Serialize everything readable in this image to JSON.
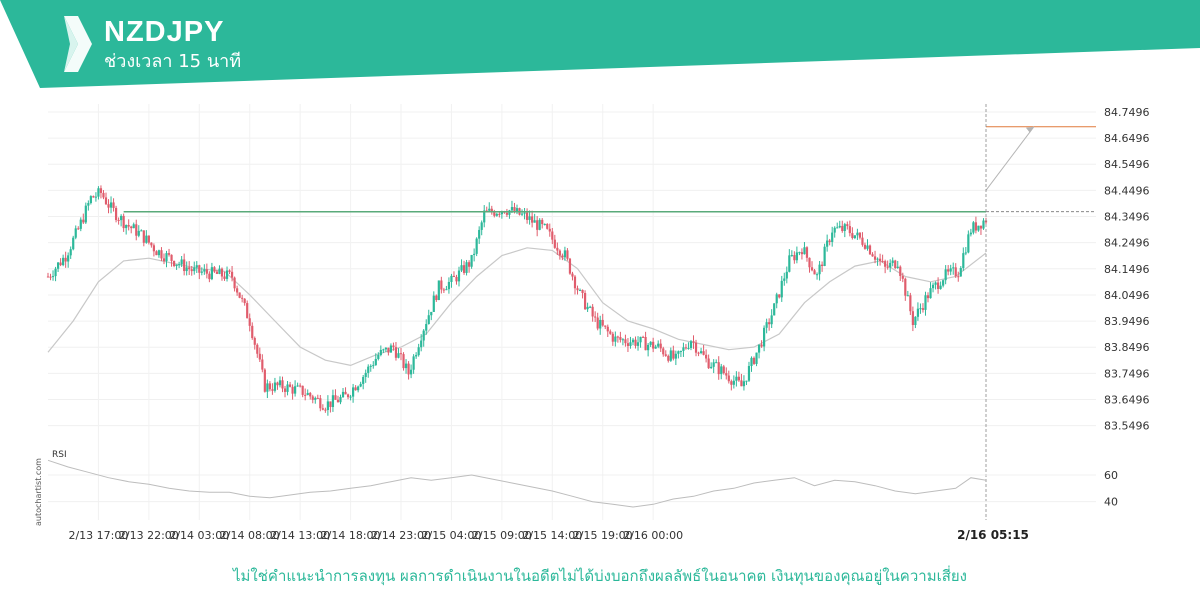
{
  "header": {
    "symbol": "NZDJPY",
    "timeframe": "ช่วงเวลา 15 นาที",
    "brand_color": "#2cb89a"
  },
  "watermark": "autochartist.com",
  "disclaimer": "ไม่ใช่คำแนะนำการลงทุน ผลการดำเนินงานในอดีตไม่ได้บ่งบอกถึงผลลัพธ์ในอนาคต เงินทุนของคุณอยู่ในความเสี่ยง",
  "chart_data": {
    "type": "candlestick",
    "price_axis": {
      "ticks": [
        "84.7496",
        "84.6496",
        "84.5496",
        "84.4496",
        "84.3496",
        "84.2496",
        "84.1496",
        "84.0496",
        "83.9496",
        "83.8496",
        "83.7496",
        "83.6496",
        "83.5496"
      ],
      "range": [
        83.51,
        84.78
      ]
    },
    "time_axis": {
      "ticks": [
        "2/13 17:00",
        "2/13 22:00",
        "2/14 03:00",
        "2/14 08:00",
        "2/14 13:00",
        "2/14 18:00",
        "2/14 23:00",
        "2/15 04:00",
        "2/15 09:00",
        "2/15 14:00",
        "2/15 19:00",
        "2/16 00:00"
      ],
      "current_time_label": "2/16 05:15"
    },
    "key_levels": {
      "breakout_level": 84.368,
      "target_level": 84.693
    },
    "indicator": {
      "name": "RSI",
      "ticks": [
        "60",
        "40"
      ],
      "range": [
        30,
        75
      ]
    },
    "price_path": [
      [
        0,
        84.12
      ],
      [
        7,
        84.2
      ],
      [
        12,
        84.3
      ],
      [
        17,
        84.42
      ],
      [
        21,
        84.44
      ],
      [
        25,
        84.38
      ],
      [
        31,
        84.32
      ],
      [
        37,
        84.28
      ],
      [
        43,
        84.22
      ],
      [
        52,
        84.17
      ],
      [
        58,
        84.14
      ],
      [
        66,
        84.13
      ],
      [
        73,
        84.12
      ],
      [
        80,
        83.95
      ],
      [
        86,
        83.7
      ],
      [
        93,
        83.7
      ],
      [
        101,
        83.68
      ],
      [
        110,
        83.63
      ],
      [
        118,
        83.66
      ],
      [
        125,
        83.74
      ],
      [
        131,
        83.82
      ],
      [
        137,
        83.85
      ],
      [
        143,
        83.75
      ],
      [
        148,
        83.9
      ],
      [
        155,
        84.08
      ],
      [
        160,
        84.1
      ],
      [
        168,
        84.18
      ],
      [
        173,
        84.36
      ],
      [
        181,
        84.38
      ],
      [
        189,
        84.35
      ],
      [
        197,
        84.3
      ],
      [
        205,
        84.2
      ],
      [
        211,
        84.05
      ],
      [
        217,
        83.95
      ],
      [
        225,
        83.88
      ],
      [
        234,
        83.87
      ],
      [
        242,
        83.85
      ],
      [
        249,
        83.8
      ],
      [
        255,
        83.88
      ],
      [
        261,
        83.8
      ],
      [
        267,
        83.76
      ],
      [
        275,
        83.7
      ],
      [
        282,
        83.85
      ],
      [
        288,
        84.0
      ],
      [
        294,
        84.18
      ],
      [
        299,
        84.23
      ],
      [
        305,
        84.12
      ],
      [
        311,
        84.3
      ],
      [
        317,
        84.3
      ],
      [
        324,
        84.25
      ],
      [
        332,
        84.15
      ],
      [
        337,
        84.18
      ],
      [
        343,
        83.95
      ],
      [
        349,
        84.05
      ],
      [
        355,
        84.12
      ],
      [
        361,
        84.14
      ],
      [
        366,
        84.3
      ],
      [
        372,
        84.34
      ]
    ],
    "ma_path": [
      [
        0,
        83.83
      ],
      [
        10,
        83.95
      ],
      [
        20,
        84.1
      ],
      [
        30,
        84.18
      ],
      [
        40,
        84.19
      ],
      [
        50,
        84.17
      ],
      [
        60,
        84.15
      ],
      [
        70,
        84.14
      ],
      [
        80,
        84.05
      ],
      [
        90,
        83.95
      ],
      [
        100,
        83.85
      ],
      [
        110,
        83.8
      ],
      [
        120,
        83.78
      ],
      [
        130,
        83.82
      ],
      [
        140,
        83.85
      ],
      [
        150,
        83.9
      ],
      [
        160,
        84.02
      ],
      [
        170,
        84.12
      ],
      [
        180,
        84.2
      ],
      [
        190,
        84.23
      ],
      [
        200,
        84.22
      ],
      [
        210,
        84.15
      ],
      [
        220,
        84.02
      ],
      [
        230,
        83.95
      ],
      [
        240,
        83.92
      ],
      [
        250,
        83.88
      ],
      [
        260,
        83.86
      ],
      [
        270,
        83.84
      ],
      [
        280,
        83.85
      ],
      [
        290,
        83.9
      ],
      [
        300,
        84.02
      ],
      [
        310,
        84.1
      ],
      [
        320,
        84.16
      ],
      [
        330,
        84.18
      ],
      [
        340,
        84.12
      ],
      [
        350,
        84.1
      ],
      [
        360,
        84.12
      ],
      [
        372,
        84.21
      ]
    ],
    "rsi_path": [
      [
        0,
        71
      ],
      [
        8,
        66
      ],
      [
        16,
        62
      ],
      [
        24,
        58
      ],
      [
        32,
        55
      ],
      [
        40,
        53
      ],
      [
        48,
        50
      ],
      [
        56,
        48
      ],
      [
        64,
        47
      ],
      [
        72,
        47
      ],
      [
        80,
        44
      ],
      [
        88,
        43
      ],
      [
        96,
        45
      ],
      [
        104,
        47
      ],
      [
        112,
        48
      ],
      [
        120,
        50
      ],
      [
        128,
        52
      ],
      [
        136,
        55
      ],
      [
        144,
        58
      ],
      [
        152,
        56
      ],
      [
        160,
        58
      ],
      [
        168,
        60
      ],
      [
        176,
        57
      ],
      [
        184,
        54
      ],
      [
        192,
        51
      ],
      [
        200,
        48
      ],
      [
        208,
        44
      ],
      [
        216,
        40
      ],
      [
        224,
        38
      ],
      [
        232,
        36
      ],
      [
        240,
        38
      ],
      [
        248,
        42
      ],
      [
        256,
        44
      ],
      [
        264,
        48
      ],
      [
        272,
        50
      ],
      [
        280,
        54
      ],
      [
        288,
        56
      ],
      [
        296,
        58
      ],
      [
        304,
        52
      ],
      [
        312,
        56
      ],
      [
        320,
        55
      ],
      [
        328,
        52
      ],
      [
        336,
        48
      ],
      [
        344,
        46
      ],
      [
        352,
        48
      ],
      [
        360,
        50
      ],
      [
        366,
        58
      ],
      [
        372,
        56
      ]
    ],
    "projection": {
      "from_index": 372,
      "from": 84.45,
      "to_index": 391,
      "to": 84.693
    }
  }
}
